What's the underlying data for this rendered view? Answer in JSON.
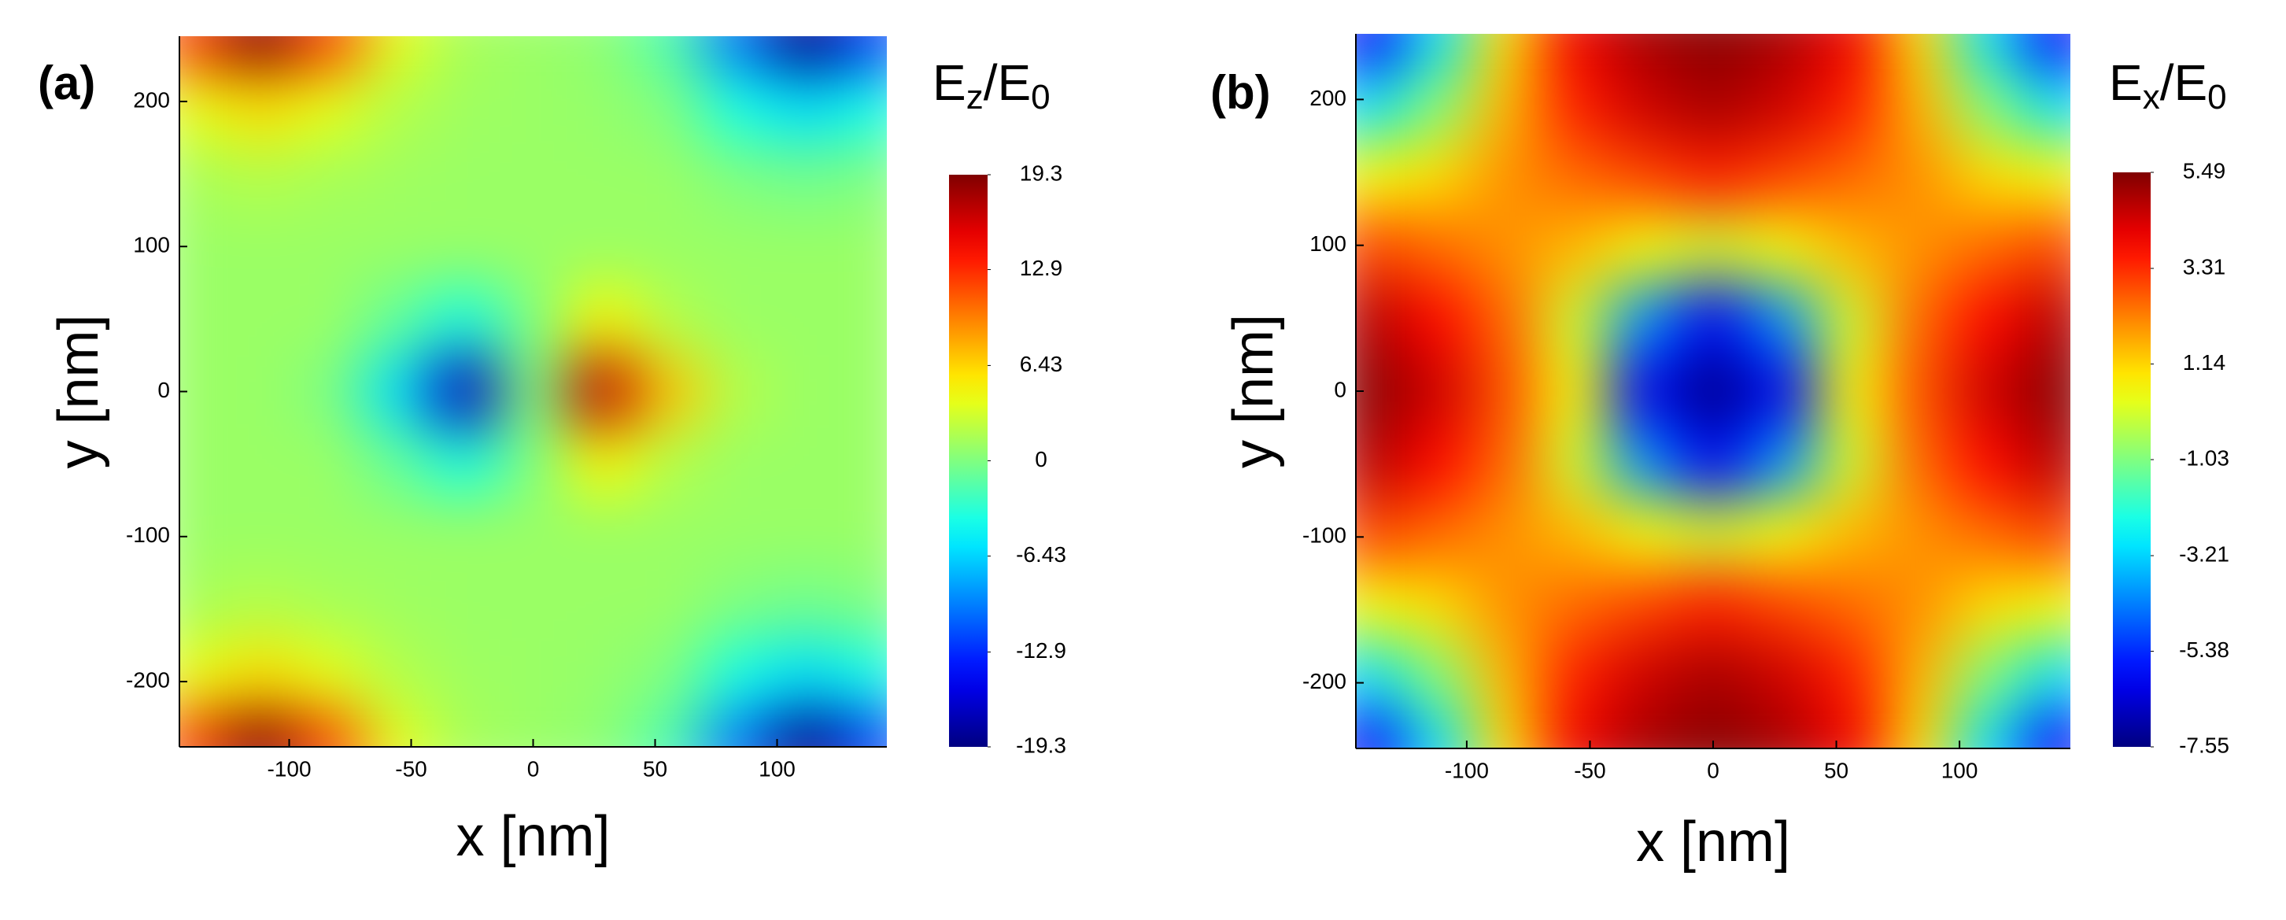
{
  "chart_data": [
    {
      "type": "heatmap",
      "panel_label": "(a)",
      "colormap": "jet",
      "xlabel": "x [nm]",
      "ylabel": "y [nm]",
      "colorbar_label": [
        "E",
        "z",
        "/E",
        "0"
      ],
      "xlim": [
        -145,
        145
      ],
      "ylim": [
        -245,
        245
      ],
      "xticks": [
        -100,
        -50,
        0,
        50,
        100
      ],
      "yticks": [
        -200,
        -100,
        0,
        100,
        200
      ],
      "zlim": [
        -19.3,
        19.3
      ],
      "zticks": [
        19.3,
        12.9,
        6.43,
        0,
        -6.43,
        -12.9,
        -19.3
      ],
      "x": [
        -140,
        -112,
        -84,
        -56,
        -28,
        0,
        28,
        56,
        84,
        112,
        140
      ],
      "y": [
        245,
        196,
        147,
        98,
        49,
        0,
        -49,
        -98,
        -147,
        -196,
        -245
      ],
      "z": [
        [
          12,
          19,
          12,
          4,
          1.5,
          1,
          0.5,
          -2,
          -10,
          -19,
          -12
        ],
        [
          4,
          6,
          4,
          2,
          1.2,
          1,
          0.8,
          0,
          -4,
          -6,
          -4
        ],
        [
          1.5,
          2,
          1.5,
          1.2,
          1,
          1,
          1,
          1,
          0,
          -0.5,
          0
        ],
        [
          1,
          1,
          1,
          1,
          1,
          1,
          1,
          1,
          1,
          1,
          1
        ],
        [
          1,
          1,
          1,
          -1,
          -4,
          0,
          5,
          2,
          1,
          1,
          1
        ],
        [
          1,
          1,
          0,
          -6,
          -17,
          0,
          17,
          7,
          2,
          1,
          1
        ],
        [
          1,
          1,
          1,
          -1,
          -4,
          0,
          5,
          2,
          1,
          1,
          1
        ],
        [
          1,
          1,
          1,
          1,
          1,
          1,
          1,
          1,
          1,
          1,
          1
        ],
        [
          1.5,
          2,
          1.5,
          1.2,
          1,
          1,
          1,
          1,
          0,
          -0.5,
          0
        ],
        [
          4,
          6,
          4,
          2,
          1.2,
          1,
          0.8,
          0,
          -4,
          -6,
          -4
        ],
        [
          12,
          19,
          12,
          4,
          1.5,
          1,
          0.5,
          -2,
          -10,
          -19,
          -12
        ]
      ]
    },
    {
      "type": "heatmap",
      "panel_label": "(b)",
      "colormap": "jet",
      "xlabel": "x [nm]",
      "ylabel": "y [nm]",
      "colorbar_label": [
        "E",
        "x",
        "/E",
        "0"
      ],
      "xlim": [
        -145,
        145
      ],
      "ylim": [
        -245,
        245
      ],
      "xticks": [
        -100,
        -50,
        0,
        50,
        100
      ],
      "yticks": [
        -200,
        -100,
        0,
        100,
        200
      ],
      "zlim": [
        -7.55,
        5.49
      ],
      "zticks": [
        5.49,
        3.31,
        1.14,
        -1.03,
        -3.21,
        -5.38,
        -7.55
      ],
      "x": [
        -140,
        -112,
        -84,
        -56,
        -28,
        0,
        28,
        56,
        84,
        112,
        140
      ],
      "y": [
        245,
        196,
        147,
        98,
        49,
        0,
        -49,
        -98,
        -147,
        -196,
        -245
      ],
      "z": [
        [
          -6,
          -3,
          1,
          4,
          5,
          5.4,
          5,
          4,
          1,
          -3,
          -6
        ],
        [
          -3,
          -1,
          1.5,
          3.5,
          4.5,
          5,
          4.5,
          3.5,
          1.5,
          -1,
          -3
        ],
        [
          0.5,
          1,
          2,
          2.5,
          3,
          3.5,
          3,
          2.5,
          2,
          1,
          0.5
        ],
        [
          3,
          2.5,
          2,
          1.5,
          0.5,
          0,
          0.5,
          1.5,
          2,
          2.5,
          3
        ],
        [
          4.8,
          3.8,
          2.5,
          0,
          -4,
          -6,
          -4,
          0,
          2.5,
          3.8,
          4.8
        ],
        [
          5.4,
          4.5,
          2.8,
          0.5,
          -6,
          -7.5,
          -6,
          0.5,
          2.8,
          4.5,
          5.4
        ],
        [
          4.8,
          3.8,
          2.5,
          0,
          -4,
          -6,
          -4,
          0,
          2.5,
          3.8,
          4.8
        ],
        [
          3,
          2.5,
          2,
          1.5,
          0.5,
          0,
          0.5,
          1.5,
          2,
          2.5,
          3
        ],
        [
          0.5,
          1,
          2,
          2.5,
          3,
          3.5,
          3,
          2.5,
          2,
          1,
          0.5
        ],
        [
          -3,
          -1,
          1.5,
          3.5,
          4.5,
          5,
          4.5,
          3.5,
          1.5,
          -1,
          -3
        ],
        [
          -6,
          -3,
          1,
          4,
          5,
          5.4,
          5,
          4,
          1,
          -3,
          -6
        ]
      ]
    }
  ]
}
